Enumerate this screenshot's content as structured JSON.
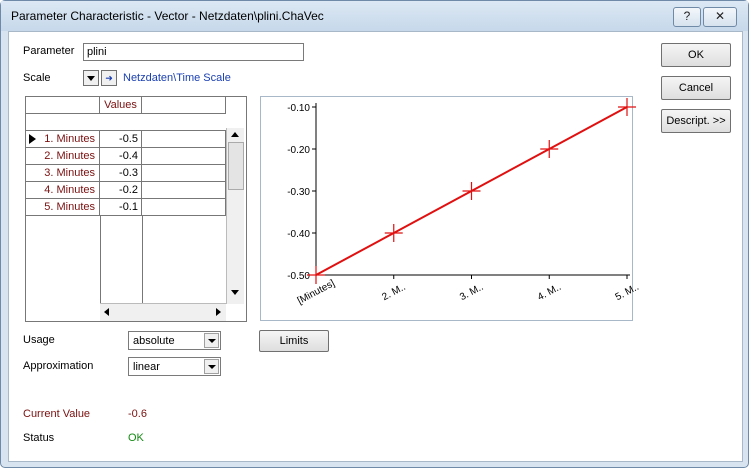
{
  "window": {
    "title": "Parameter Characteristic - Vector - Netzdaten\\plini.ChaVec",
    "help_label": "?",
    "close_label": "✕"
  },
  "form": {
    "parameter_label": "Parameter",
    "parameter_value": "plini",
    "scale_label": "Scale",
    "scale_link": "Netzdaten\\Time Scale",
    "usage_label": "Usage",
    "usage_value": "absolute",
    "approximation_label": "Approximation",
    "approximation_value": "linear",
    "limits_label": "Limits",
    "current_value_label": "Current Value",
    "current_value": "-0.6",
    "status_label": "Status",
    "status_value": "OK"
  },
  "buttons": {
    "ok": "OK",
    "cancel": "Cancel",
    "descript": "Descript. >>"
  },
  "table": {
    "column_header": "Values",
    "rows": [
      {
        "label": "1. Minutes",
        "value": "-0.5"
      },
      {
        "label": "2. Minutes",
        "value": "-0.4"
      },
      {
        "label": "3. Minutes",
        "value": "-0.3"
      },
      {
        "label": "4. Minutes",
        "value": "-0.2"
      },
      {
        "label": "5. Minutes",
        "value": "-0.1"
      }
    ]
  },
  "chart_data": {
    "type": "line",
    "x": [
      "[Minutes]",
      "2. M..",
      "3. M..",
      "4. M..",
      "5. M.."
    ],
    "series": [
      {
        "values": [
          -0.5,
          -0.4,
          -0.3,
          -0.2,
          -0.1
        ],
        "color": "#e01010"
      }
    ],
    "y_ticks": [
      "-0.10",
      "-0.20",
      "-0.30",
      "-0.40",
      "-0.50"
    ],
    "ylim": [
      -0.5,
      -0.1
    ],
    "grid": false,
    "title": "",
    "xlabel": "",
    "ylabel": ""
  }
}
